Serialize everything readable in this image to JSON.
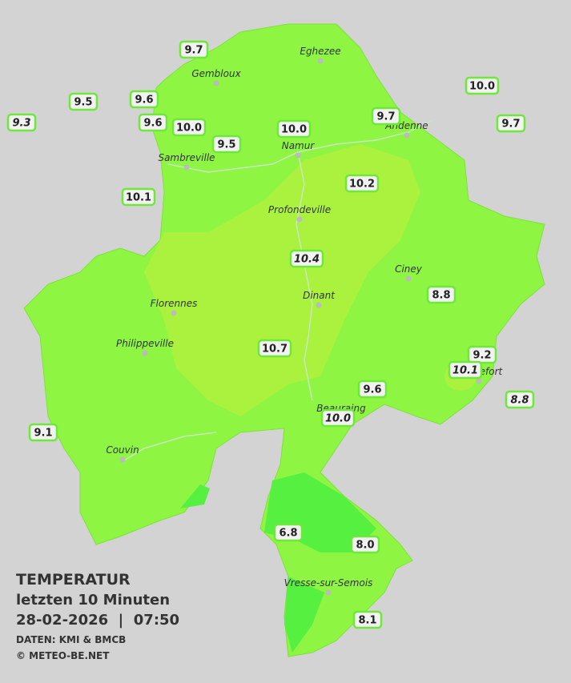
{
  "title": "TEMPERATUR",
  "subtitle": "letzten 10 Minuten",
  "timestamp": "28-02-2026  |  07:50",
  "source": "DATEN: KMI & BMCB",
  "copyright": "© METEO-BE.NET",
  "cities": [
    "Eghezee",
    "Gembloux",
    "Andenne",
    "Namur",
    "Sambreville",
    "Profondeville",
    "Ciney",
    "Dinant",
    "Florennes",
    "Philippeville",
    "Rochefort",
    "Beauraing",
    "Couvin",
    "Vresse-sur-Semois"
  ],
  "stations": [
    {
      "label": "9.7",
      "italic": false
    },
    {
      "label": "10.0",
      "italic": false
    },
    {
      "label": "9.5",
      "italic": false
    },
    {
      "label": "9.6",
      "italic": false
    },
    {
      "label": "9.3",
      "italic": true
    },
    {
      "label": "9.6",
      "italic": false
    },
    {
      "label": "10.0",
      "italic": false
    },
    {
      "label": "10.0",
      "italic": false
    },
    {
      "label": "9.7",
      "italic": false
    },
    {
      "label": "9.7",
      "italic": false
    },
    {
      "label": "9.5",
      "italic": false
    },
    {
      "label": "10.1",
      "italic": false
    },
    {
      "label": "10.2",
      "italic": false
    },
    {
      "label": "10.4",
      "italic": true
    },
    {
      "label": "8.8",
      "italic": false
    },
    {
      "label": "10.7",
      "italic": false
    },
    {
      "label": "9.2",
      "italic": false
    },
    {
      "label": "10.1",
      "italic": true
    },
    {
      "label": "9.6",
      "italic": false
    },
    {
      "label": "8.8",
      "italic": true
    },
    {
      "label": "10.0",
      "italic": true
    },
    {
      "label": "9.1",
      "italic": false
    },
    {
      "label": "6.8",
      "italic": false
    },
    {
      "label": "8.0",
      "italic": false
    },
    {
      "label": "8.1",
      "italic": false
    }
  ]
}
